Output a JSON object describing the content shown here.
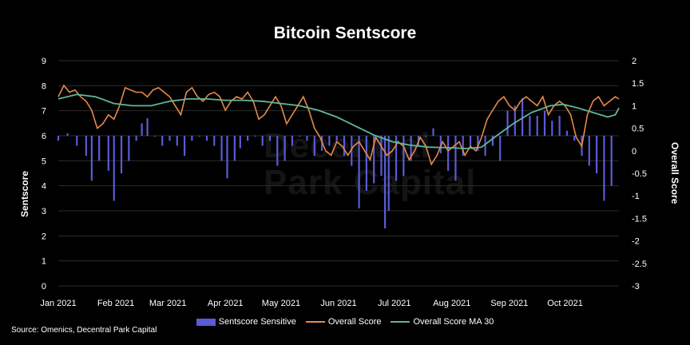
{
  "chart_data": {
    "type": "bar+line",
    "title": "Bitcoin Sentscore",
    "ylabel_left": "Sentscore",
    "ylabel_right": "Overall Score",
    "ylim_left": [
      0,
      9
    ],
    "yticks_left": [
      0,
      1,
      2,
      3,
      4,
      5,
      6,
      7,
      8,
      9
    ],
    "ylim_right": [
      -3,
      2
    ],
    "yticks_right": [
      "-3",
      "-2.5",
      "-2",
      "-1.5",
      "-1",
      "-0.5",
      "0",
      "0.5",
      "1",
      "1.5",
      "2"
    ],
    "bar_baseline": 6,
    "x_tick_labels": [
      "Jan 2021",
      "Feb 2021",
      "Mar 2021",
      "Apr 2021",
      "May 2021",
      "Jun 2021",
      "Jul 2021",
      "Aug 2021",
      "Sep 2021",
      "Oct 2021"
    ],
    "x_range_days": [
      0,
      302
    ],
    "legend_position": "bottom",
    "series": [
      {
        "name": "Sentscore Sensitive",
        "type": "bar",
        "axis": "left",
        "color": "#5b5bd6",
        "points": [
          [
            0,
            5.8
          ],
          [
            5,
            6.1
          ],
          [
            10,
            5.6
          ],
          [
            15,
            5.2
          ],
          [
            18,
            4.2
          ],
          [
            22,
            5.0
          ],
          [
            27,
            4.6
          ],
          [
            30,
            3.4
          ],
          [
            34,
            4.5
          ],
          [
            38,
            5.0
          ],
          [
            42,
            5.8
          ],
          [
            45,
            6.5
          ],
          [
            48,
            6.7
          ],
          [
            52,
            6.0
          ],
          [
            56,
            5.6
          ],
          [
            60,
            5.8
          ],
          [
            64,
            5.6
          ],
          [
            68,
            5.2
          ],
          [
            72,
            5.8
          ],
          [
            76,
            6.0
          ],
          [
            80,
            5.8
          ],
          [
            84,
            5.6
          ],
          [
            88,
            5.0
          ],
          [
            91,
            4.3
          ],
          [
            95,
            5.0
          ],
          [
            98,
            5.5
          ],
          [
            102,
            5.8
          ],
          [
            106,
            6.0
          ],
          [
            110,
            5.6
          ],
          [
            114,
            5.8
          ],
          [
            118,
            4.8
          ],
          [
            122,
            5.0
          ],
          [
            126,
            5.6
          ],
          [
            130,
            6.0
          ],
          [
            134,
            5.8
          ],
          [
            138,
            5.2
          ],
          [
            142,
            5.4
          ],
          [
            146,
            5.6
          ],
          [
            150,
            5.8
          ],
          [
            154,
            5.2
          ],
          [
            158,
            4.8
          ],
          [
            162,
            3.1
          ],
          [
            166,
            3.8
          ],
          [
            170,
            4.1
          ],
          [
            174,
            4.4
          ],
          [
            176,
            2.3
          ],
          [
            178,
            3.0
          ],
          [
            182,
            4.2
          ],
          [
            186,
            4.4
          ],
          [
            190,
            5.0
          ],
          [
            194,
            5.6
          ],
          [
            198,
            6.0
          ],
          [
            202,
            6.3
          ],
          [
            206,
            5.3
          ],
          [
            210,
            4.6
          ],
          [
            214,
            4.2
          ],
          [
            218,
            5.2
          ],
          [
            222,
            5.6
          ],
          [
            226,
            5.4
          ],
          [
            230,
            5.2
          ],
          [
            234,
            5.6
          ],
          [
            238,
            5.0
          ],
          [
            242,
            7.0
          ],
          [
            246,
            7.2
          ],
          [
            250,
            7.5
          ],
          [
            254,
            6.8
          ],
          [
            258,
            6.8
          ],
          [
            262,
            7.0
          ],
          [
            266,
            6.6
          ],
          [
            270,
            6.8
          ],
          [
            274,
            6.2
          ],
          [
            278,
            5.8
          ],
          [
            282,
            5.2
          ],
          [
            286,
            4.8
          ],
          [
            290,
            4.5
          ],
          [
            294,
            3.4
          ],
          [
            298,
            4.0
          ]
        ]
      },
      {
        "name": "Overall Score",
        "type": "line",
        "axis": "right",
        "color": "#e8894a",
        "points": [
          [
            0,
            1.2
          ],
          [
            3,
            1.45
          ],
          [
            6,
            1.3
          ],
          [
            9,
            1.35
          ],
          [
            12,
            1.2
          ],
          [
            15,
            1.1
          ],
          [
            18,
            0.9
          ],
          [
            21,
            0.5
          ],
          [
            24,
            0.6
          ],
          [
            27,
            0.8
          ],
          [
            30,
            0.7
          ],
          [
            33,
            1.0
          ],
          [
            36,
            1.4
          ],
          [
            39,
            1.35
          ],
          [
            42,
            1.3
          ],
          [
            45,
            1.3
          ],
          [
            48,
            1.2
          ],
          [
            51,
            1.35
          ],
          [
            54,
            1.4
          ],
          [
            57,
            1.3
          ],
          [
            60,
            1.2
          ],
          [
            63,
            1.0
          ],
          [
            66,
            0.8
          ],
          [
            69,
            1.3
          ],
          [
            72,
            1.4
          ],
          [
            75,
            1.2
          ],
          [
            78,
            1.1
          ],
          [
            81,
            1.25
          ],
          [
            84,
            1.3
          ],
          [
            87,
            1.2
          ],
          [
            90,
            0.9
          ],
          [
            93,
            1.1
          ],
          [
            96,
            1.2
          ],
          [
            99,
            1.15
          ],
          [
            102,
            1.3
          ],
          [
            105,
            1.1
          ],
          [
            108,
            0.7
          ],
          [
            111,
            0.8
          ],
          [
            114,
            1.0
          ],
          [
            117,
            1.2
          ],
          [
            120,
            1.0
          ],
          [
            123,
            0.6
          ],
          [
            126,
            0.8
          ],
          [
            129,
            1.0
          ],
          [
            132,
            1.2
          ],
          [
            135,
            0.9
          ],
          [
            138,
            0.5
          ],
          [
            141,
            0.3
          ],
          [
            144,
            0.0
          ],
          [
            147,
            -0.1
          ],
          [
            150,
            0.2
          ],
          [
            153,
            0.1
          ],
          [
            156,
            -0.1
          ],
          [
            159,
            0.1
          ],
          [
            162,
            0.2
          ],
          [
            165,
            0.0
          ],
          [
            168,
            -0.2
          ],
          [
            171,
            0.3
          ],
          [
            174,
            0.1
          ],
          [
            177,
            -0.1
          ],
          [
            180,
            0.0
          ],
          [
            183,
            0.2
          ],
          [
            186,
            0.1
          ],
          [
            189,
            -0.2
          ],
          [
            192,
            0.0
          ],
          [
            195,
            0.3
          ],
          [
            198,
            0.1
          ],
          [
            201,
            -0.3
          ],
          [
            204,
            -0.1
          ],
          [
            207,
            0.2
          ],
          [
            210,
            0.0
          ],
          [
            213,
            0.1
          ],
          [
            216,
            0.2
          ],
          [
            219,
            -0.1
          ],
          [
            222,
            0.1
          ],
          [
            225,
            0.0
          ],
          [
            228,
            0.3
          ],
          [
            231,
            0.7
          ],
          [
            234,
            0.9
          ],
          [
            237,
            1.1
          ],
          [
            240,
            1.2
          ],
          [
            243,
            1.0
          ],
          [
            246,
            0.9
          ],
          [
            249,
            1.1
          ],
          [
            252,
            1.2
          ],
          [
            255,
            1.1
          ],
          [
            258,
            1.0
          ],
          [
            261,
            1.2
          ],
          [
            264,
            0.8
          ],
          [
            267,
            1.0
          ],
          [
            270,
            1.1
          ],
          [
            273,
            1.0
          ],
          [
            276,
            0.8
          ],
          [
            279,
            0.3
          ],
          [
            282,
            0.1
          ],
          [
            285,
            0.8
          ],
          [
            288,
            1.1
          ],
          [
            291,
            1.2
          ],
          [
            294,
            1.0
          ],
          [
            297,
            1.1
          ],
          [
            300,
            1.2
          ],
          [
            302,
            1.15
          ]
        ]
      },
      {
        "name": "Overall Score MA 30",
        "type": "line",
        "axis": "right",
        "color": "#5fb79a",
        "points": [
          [
            0,
            1.15
          ],
          [
            10,
            1.25
          ],
          [
            20,
            1.2
          ],
          [
            30,
            1.05
          ],
          [
            40,
            1.0
          ],
          [
            50,
            1.0
          ],
          [
            60,
            1.1
          ],
          [
            70,
            1.15
          ],
          [
            80,
            1.15
          ],
          [
            90,
            1.12
          ],
          [
            100,
            1.12
          ],
          [
            110,
            1.1
          ],
          [
            120,
            1.05
          ],
          [
            130,
            1.0
          ],
          [
            140,
            0.9
          ],
          [
            150,
            0.75
          ],
          [
            160,
            0.55
          ],
          [
            170,
            0.35
          ],
          [
            180,
            0.2
          ],
          [
            190,
            0.12
          ],
          [
            200,
            0.08
          ],
          [
            210,
            0.07
          ],
          [
            220,
            0.05
          ],
          [
            228,
            0.08
          ],
          [
            235,
            0.3
          ],
          [
            245,
            0.6
          ],
          [
            255,
            0.85
          ],
          [
            265,
            1.0
          ],
          [
            272,
            1.03
          ],
          [
            280,
            0.95
          ],
          [
            288,
            0.85
          ],
          [
            296,
            0.75
          ],
          [
            300,
            0.8
          ],
          [
            302,
            0.95
          ]
        ]
      }
    ]
  },
  "watermark": {
    "line1": "Decentral",
    "line2": "Park Capital"
  },
  "source": "Source: Omenics, Decentral Park Capital",
  "colors": {
    "background": "#000000",
    "bars": "#5b5bd6",
    "overall": "#e8894a",
    "ma": "#5fb79a"
  }
}
